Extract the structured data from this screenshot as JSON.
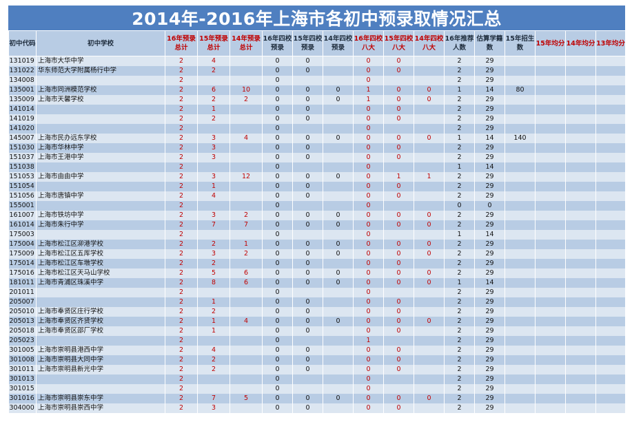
{
  "title": "2014年-2016年上海市各初中预录取情况汇总",
  "headers": [
    "初中代码",
    "初中学校",
    "16年预录总计",
    "15年预录总计",
    "14年预录总计",
    "16年四校预录",
    "15年四校预录",
    "14年四校预录",
    "16年四校八大",
    "15年四校八大",
    "14年四校八大",
    "16年推荐人数",
    "估算学籍数",
    "15年招生数",
    "15年均分",
    "14年均分",
    "13年均分"
  ],
  "red_columns": [
    2,
    3,
    4,
    8,
    9,
    10,
    14,
    15,
    16
  ],
  "rows": [
    [
      "131019",
      "上海市大华中学",
      "2",
      "4",
      "",
      "0",
      "0",
      "",
      "0",
      "0",
      "",
      "2",
      "29",
      "",
      "",
      "",
      ""
    ],
    [
      "131022",
      "华东师范大学附属杨行中学",
      "2",
      "2",
      "",
      "0",
      "0",
      "",
      "0",
      "0",
      "",
      "2",
      "29",
      "",
      "",
      "",
      ""
    ],
    [
      "134008",
      "",
      "2",
      "",
      "",
      "0",
      "",
      "",
      "0",
      "",
      "",
      "2",
      "29",
      "",
      "",
      "",
      ""
    ],
    [
      "135001",
      "上海市同洲模范学校",
      "2",
      "6",
      "10",
      "0",
      "0",
      "0",
      "1",
      "0",
      "0",
      "1",
      "14",
      "80",
      "",
      "",
      ""
    ],
    [
      "135009",
      "上海市天馨学校",
      "2",
      "2",
      "2",
      "0",
      "0",
      "0",
      "1",
      "0",
      "0",
      "2",
      "29",
      "",
      "",
      "",
      ""
    ],
    [
      "141014",
      "",
      "2",
      "1",
      "",
      "0",
      "0",
      "",
      "0",
      "0",
      "",
      "2",
      "29",
      "",
      "",
      "",
      ""
    ],
    [
      "141019",
      "",
      "2",
      "2",
      "",
      "0",
      "0",
      "",
      "0",
      "0",
      "",
      "2",
      "29",
      "",
      "",
      "",
      ""
    ],
    [
      "141020",
      "",
      "2",
      "",
      "",
      "0",
      "",
      "",
      "0",
      "",
      "",
      "2",
      "29",
      "",
      "",
      "",
      ""
    ],
    [
      "145007",
      "上海市民办远东学校",
      "2",
      "3",
      "4",
      "0",
      "0",
      "0",
      "0",
      "0",
      "0",
      "1",
      "14",
      "140",
      "",
      "",
      ""
    ],
    [
      "151030",
      "上海市华林中学",
      "2",
      "3",
      "",
      "0",
      "0",
      "",
      "0",
      "0",
      "",
      "2",
      "29",
      "",
      "",
      "",
      ""
    ],
    [
      "151037",
      "上海市王港中学",
      "2",
      "3",
      "",
      "0",
      "0",
      "",
      "0",
      "0",
      "",
      "2",
      "29",
      "",
      "",
      "",
      ""
    ],
    [
      "151038",
      "",
      "2",
      "",
      "",
      "0",
      "",
      "",
      "0",
      "",
      "",
      "1",
      "14",
      "",
      "",
      "",
      ""
    ],
    [
      "151053",
      "上海市由由中学",
      "2",
      "3",
      "12",
      "0",
      "0",
      "0",
      "0",
      "1",
      "1",
      "2",
      "29",
      "",
      "",
      "",
      ""
    ],
    [
      "151054",
      "",
      "2",
      "1",
      "",
      "0",
      "0",
      "",
      "0",
      "0",
      "",
      "2",
      "29",
      "",
      "",
      "",
      ""
    ],
    [
      "151056",
      "上海市唐镇中学",
      "2",
      "4",
      "",
      "0",
      "0",
      "",
      "0",
      "0",
      "",
      "2",
      "29",
      "",
      "",
      "",
      ""
    ],
    [
      "155001",
      "",
      "2",
      "",
      "",
      "0",
      "",
      "",
      "0",
      "",
      "",
      "0",
      "0",
      "",
      "",
      "",
      ""
    ],
    [
      "161007",
      "上海市铁坊中学",
      "2",
      "3",
      "2",
      "0",
      "0",
      "0",
      "0",
      "0",
      "0",
      "2",
      "29",
      "",
      "",
      "",
      ""
    ],
    [
      "161014",
      "上海市朱行中学",
      "2",
      "7",
      "7",
      "0",
      "0",
      "0",
      "0",
      "0",
      "0",
      "2",
      "29",
      "",
      "",
      "",
      ""
    ],
    [
      "175003",
      "",
      "2",
      "",
      "",
      "0",
      "",
      "",
      "0",
      "",
      "",
      "1",
      "14",
      "",
      "",
      "",
      ""
    ],
    [
      "175004",
      "上海市松江区泖港学校",
      "2",
      "2",
      "1",
      "0",
      "0",
      "0",
      "0",
      "0",
      "0",
      "2",
      "29",
      "",
      "",
      "",
      ""
    ],
    [
      "175009",
      "上海市松江区五厍学校",
      "2",
      "3",
      "2",
      "0",
      "0",
      "0",
      "0",
      "0",
      "0",
      "2",
      "29",
      "",
      "",
      "",
      ""
    ],
    [
      "175014",
      "上海市松江区车墩学校",
      "2",
      "2",
      "",
      "0",
      "0",
      "",
      "0",
      "0",
      "",
      "2",
      "29",
      "",
      "",
      "",
      ""
    ],
    [
      "175016",
      "上海市松江区天马山学校",
      "2",
      "5",
      "6",
      "0",
      "0",
      "0",
      "0",
      "0",
      "0",
      "2",
      "29",
      "",
      "",
      "",
      ""
    ],
    [
      "181011",
      "上海市青浦区珠溪中学",
      "2",
      "8",
      "6",
      "0",
      "0",
      "0",
      "0",
      "0",
      "0",
      "1",
      "14",
      "",
      "",
      "",
      ""
    ],
    [
      "201011",
      "",
      "2",
      "",
      "",
      "0",
      "",
      "",
      "0",
      "",
      "",
      "2",
      "29",
      "",
      "",
      "",
      ""
    ],
    [
      "205007",
      "",
      "2",
      "1",
      "",
      "0",
      "0",
      "",
      "0",
      "0",
      "",
      "2",
      "29",
      "",
      "",
      "",
      ""
    ],
    [
      "205010",
      "上海市奉贤区庄行学校",
      "2",
      "2",
      "",
      "0",
      "0",
      "",
      "0",
      "0",
      "",
      "2",
      "29",
      "",
      "",
      "",
      ""
    ],
    [
      "205013",
      "上海市奉贤区齐贤学校",
      "2",
      "1",
      "4",
      "0",
      "0",
      "0",
      "0",
      "0",
      "0",
      "2",
      "29",
      "",
      "",
      "",
      ""
    ],
    [
      "205018",
      "上海市奉贤区邵厂学校",
      "2",
      "1",
      "",
      "0",
      "0",
      "",
      "0",
      "0",
      "",
      "2",
      "29",
      "",
      "",
      "",
      ""
    ],
    [
      "205023",
      "",
      "2",
      "",
      "",
      "0",
      "",
      "",
      "1",
      "",
      "",
      "2",
      "29",
      "",
      "",
      "",
      ""
    ],
    [
      "301005",
      "上海市崇明县港西中学",
      "2",
      "4",
      "",
      "0",
      "0",
      "",
      "0",
      "0",
      "",
      "2",
      "29",
      "",
      "",
      "",
      ""
    ],
    [
      "301008",
      "上海市崇明县大同中学",
      "2",
      "2",
      "",
      "0",
      "0",
      "",
      "0",
      "0",
      "",
      "2",
      "29",
      "",
      "",
      "",
      ""
    ],
    [
      "301011",
      "上海市崇明县新光中学",
      "2",
      "2",
      "",
      "0",
      "0",
      "",
      "0",
      "0",
      "",
      "2",
      "29",
      "",
      "",
      "",
      ""
    ],
    [
      "301013",
      "",
      "2",
      "",
      "",
      "0",
      "",
      "",
      "0",
      "",
      "",
      "2",
      "29",
      "",
      "",
      "",
      ""
    ],
    [
      "301015",
      "",
      "2",
      "",
      "",
      "0",
      "",
      "",
      "0",
      "",
      "",
      "2",
      "29",
      "",
      "",
      "",
      ""
    ],
    [
      "301016",
      "上海市崇明县崇东中学",
      "2",
      "7",
      "5",
      "0",
      "0",
      "0",
      "0",
      "0",
      "0",
      "2",
      "29",
      "",
      "",
      "",
      ""
    ],
    [
      "304000",
      "上海市崇明县崇西中学",
      "2",
      "3",
      "",
      "0",
      "0",
      "",
      "0",
      "0",
      "",
      "2",
      "29",
      "",
      "",
      "",
      ""
    ]
  ]
}
